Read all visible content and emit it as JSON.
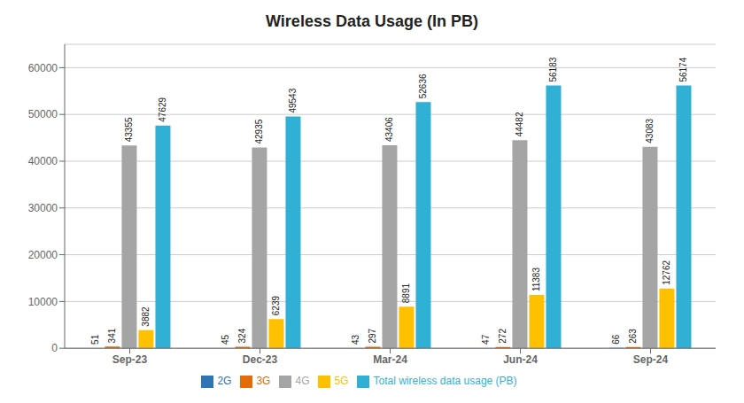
{
  "chart_data": {
    "type": "bar",
    "title": "Wireless Data Usage (In PB)",
    "categories": [
      "Sep-23",
      "Dec-23",
      "Mar-24",
      "Jun-24",
      "Sep-24"
    ],
    "series": [
      {
        "name": "2G",
        "color": "#2e75b6",
        "values": [
          51,
          45,
          43,
          47,
          66
        ]
      },
      {
        "name": "3G",
        "color": "#e36c09",
        "values": [
          341,
          324,
          297,
          272,
          263
        ]
      },
      {
        "name": "4G",
        "color": "#a5a5a5",
        "values": [
          43355,
          42935,
          43406,
          44482,
          43083
        ]
      },
      {
        "name": "5G",
        "color": "#ffc000",
        "values": [
          3882,
          6239,
          8891,
          11383,
          12762
        ]
      },
      {
        "name": "Total wireless data usage (PB)",
        "color": "#31b0d5",
        "values": [
          47629,
          49543,
          52636,
          56183,
          56174
        ]
      }
    ],
    "ylim": [
      0,
      65000
    ],
    "yticks": [
      0,
      10000,
      20000,
      30000,
      40000,
      50000,
      60000
    ],
    "grid": true,
    "legend": "bottom",
    "data_labels": true
  }
}
